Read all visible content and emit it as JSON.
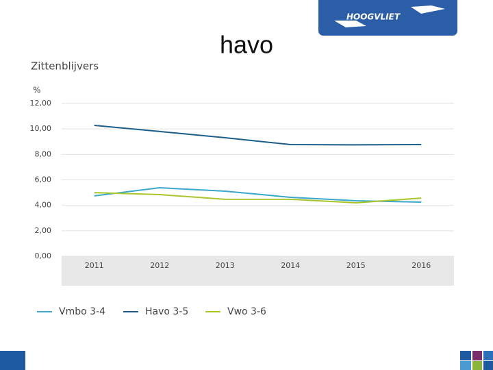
{
  "slide_title": "havo",
  "logo": "HOOGVLIET",
  "chart_data": {
    "type": "line",
    "title": "Zittenblijvers",
    "y_label": "%",
    "categories": [
      "2011",
      "2012",
      "2013",
      "2014",
      "2015",
      "2016"
    ],
    "series": [
      {
        "name": "Vmbo 3-4",
        "color": "#3ba7cb",
        "values": [
          4.74,
          5.38,
          5.11,
          4.63,
          4.36,
          4.25
        ]
      },
      {
        "name": "Havo 3-5",
        "color": "#1b5e8a",
        "values": [
          10.28,
          9.8,
          9.31,
          8.77,
          8.75,
          8.77
        ]
      },
      {
        "name": "Vwo 3-6",
        "color": "#a9c62b",
        "values": [
          5.0,
          4.84,
          4.47,
          4.47,
          4.2,
          4.57
        ]
      }
    ],
    "ylim": [
      0,
      12
    ],
    "yticks": [
      {
        "value": 0,
        "label": "0,00"
      },
      {
        "value": 2,
        "label": "2,00"
      },
      {
        "value": 4,
        "label": "4,00"
      },
      {
        "value": 6,
        "label": "6,00"
      },
      {
        "value": 8,
        "label": "8,00"
      },
      {
        "value": 10,
        "label": "10,00"
      },
      {
        "value": 12,
        "label": "12,00"
      }
    ],
    "grid": true
  }
}
